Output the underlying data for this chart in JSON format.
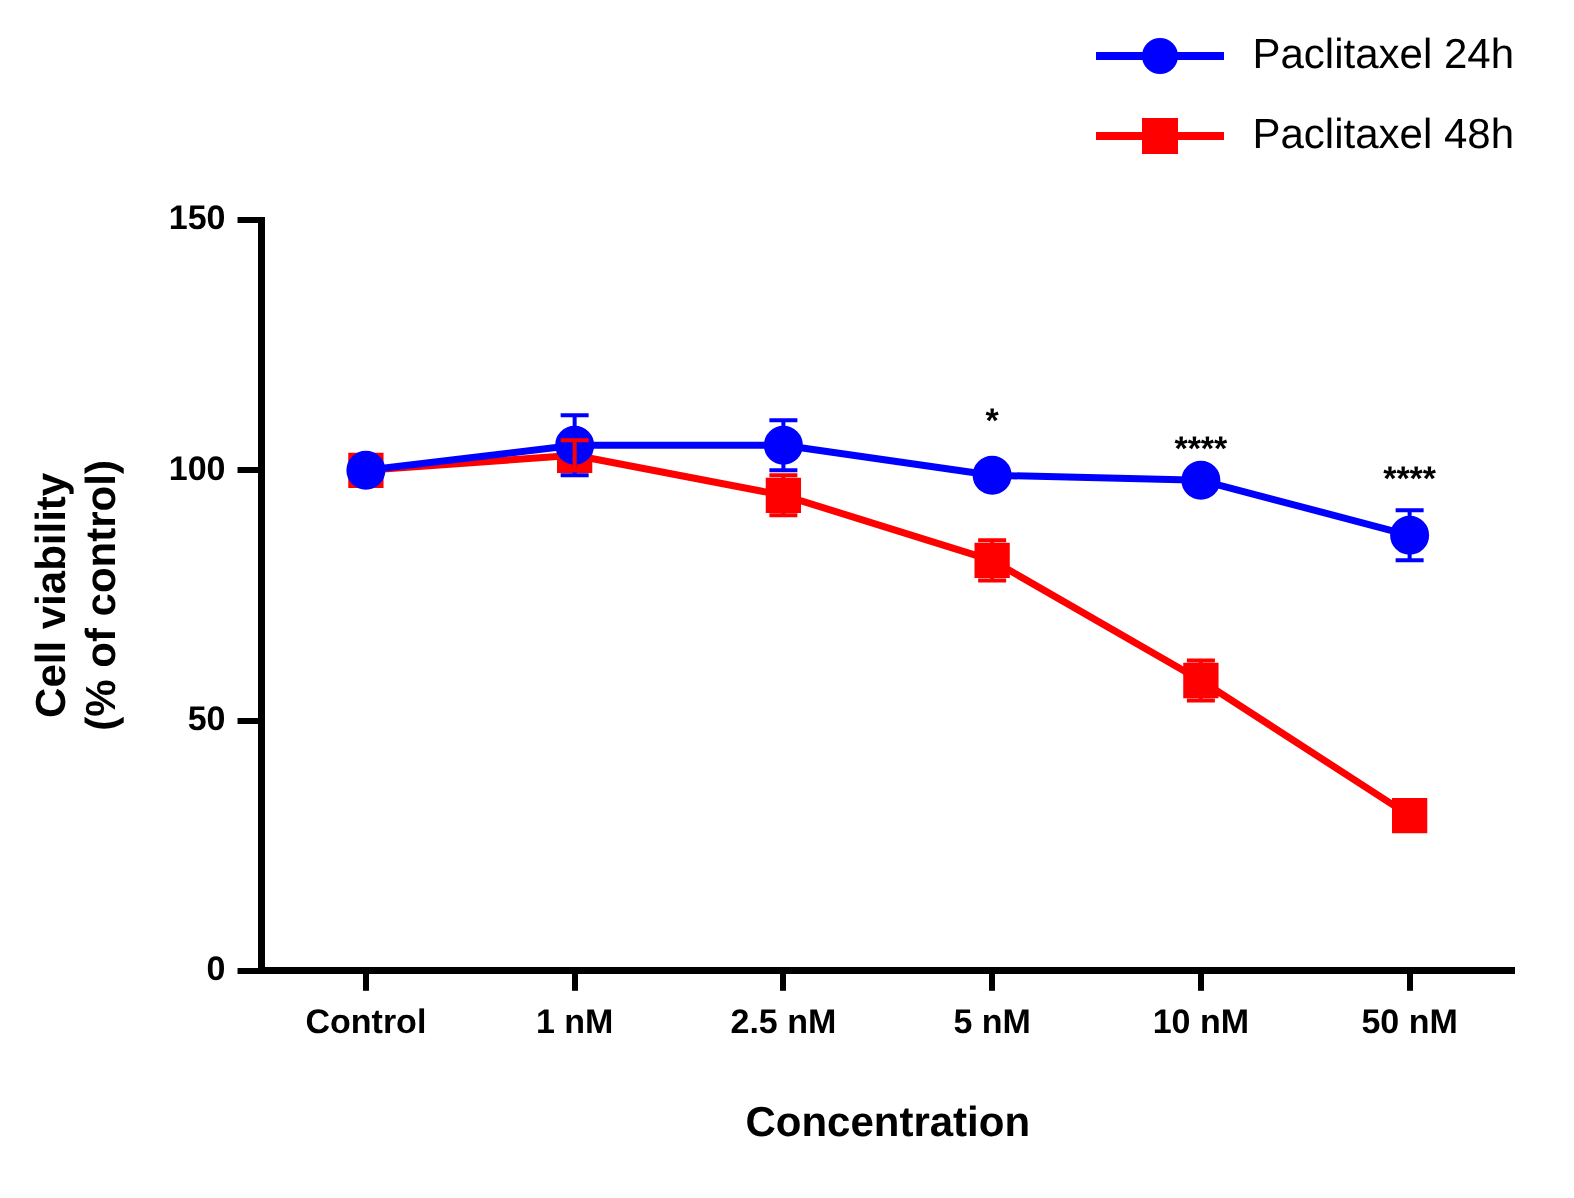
{
  "chart_data": {
    "type": "line",
    "xlabel": "Concentration",
    "ylabel": "Cell viability\n(% of control)",
    "categories": [
      "Control",
      "1 nM",
      "2.5 nM",
      "5 nM",
      "10 nM",
      "50 nM"
    ],
    "series": [
      {
        "name": "Paclitaxel 24h",
        "color": "#0000ff",
        "marker": "circle",
        "values": [
          100,
          105,
          105,
          99,
          98,
          87
        ],
        "errors": [
          null,
          6,
          5,
          null,
          null,
          5
        ]
      },
      {
        "name": "Paclitaxel 48h",
        "color": "#ff0000",
        "marker": "square",
        "values": [
          100,
          103,
          95,
          82,
          58,
          31
        ],
        "errors": [
          null,
          3,
          4,
          4,
          4,
          null
        ]
      }
    ],
    "ylim": [
      0,
      150
    ],
    "yticks": [
      0,
      50,
      100,
      150
    ],
    "grid": false,
    "legend": "top right",
    "line_style": "solid",
    "annotations": [
      {
        "text": "*",
        "x": "5 nM",
        "y": 99
      },
      {
        "text": "****",
        "x": "10 nM",
        "y": 98
      },
      {
        "text": "****",
        "x": "50 nM",
        "y": 87
      }
    ]
  }
}
